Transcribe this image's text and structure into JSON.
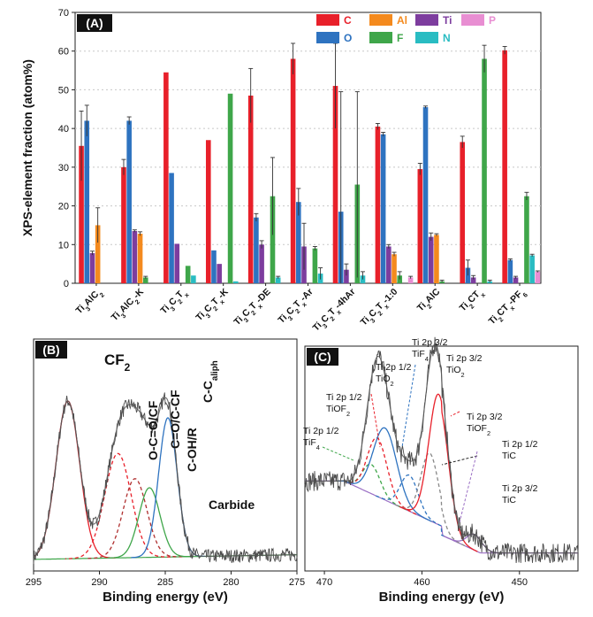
{
  "chart_data": [
    {
      "panel_label": "(A)",
      "type": "bar",
      "ylabel": "XPS-element fraction (atom%)",
      "ylim": [
        0,
        70
      ],
      "yticks": [
        "0",
        "10",
        "20",
        "30",
        "40",
        "50",
        "60",
        "70"
      ],
      "grid": "dotted horizontal",
      "legend_position": "top-right",
      "categories": [
        {
          "base": "Ti",
          "parts": [
            [
              "3",
              "s"
            ],
            [
              "AlC",
              ""
            ],
            [
              "2",
              "s"
            ]
          ]
        },
        {
          "base": "Ti",
          "parts": [
            [
              "3",
              "s"
            ],
            [
              "AlC",
              ""
            ],
            [
              "2",
              "s"
            ],
            [
              "-K",
              ""
            ]
          ]
        },
        {
          "base": "Ti",
          "parts": [
            [
              "3",
              "s"
            ],
            [
              "C",
              ""
            ],
            [
              "2",
              "s"
            ],
            [
              "T",
              ""
            ],
            [
              "x",
              "s"
            ]
          ]
        },
        {
          "base": "Ti",
          "parts": [
            [
              "3",
              "s"
            ],
            [
              "C",
              ""
            ],
            [
              "2",
              "s"
            ],
            [
              "T",
              ""
            ],
            [
              "x",
              "s"
            ],
            [
              "-K",
              ""
            ]
          ]
        },
        {
          "base": "Ti",
          "parts": [
            [
              "3",
              "s"
            ],
            [
              "C",
              ""
            ],
            [
              "2",
              "s"
            ],
            [
              "T",
              ""
            ],
            [
              "x",
              "s"
            ],
            [
              "-DE",
              ""
            ]
          ]
        },
        {
          "base": "Ti",
          "parts": [
            [
              "3",
              "s"
            ],
            [
              "C",
              ""
            ],
            [
              "2",
              "s"
            ],
            [
              "T",
              ""
            ],
            [
              "x",
              "s"
            ],
            [
              "-Ar",
              ""
            ]
          ]
        },
        {
          "base": "Ti",
          "parts": [
            [
              "3",
              "s"
            ],
            [
              "C",
              ""
            ],
            [
              "2",
              "s"
            ],
            [
              "T",
              ""
            ],
            [
              "x",
              "s"
            ],
            [
              "-4hAr",
              ""
            ]
          ]
        },
        {
          "base": "Ti",
          "parts": [
            [
              "3",
              "s"
            ],
            [
              "C",
              ""
            ],
            [
              "2",
              "s"
            ],
            [
              "T",
              ""
            ],
            [
              "x",
              "s"
            ],
            [
              "-1:0",
              ""
            ]
          ]
        },
        {
          "base": "Ti",
          "parts": [
            [
              "2",
              "s"
            ],
            [
              "AlC",
              ""
            ]
          ]
        },
        {
          "base": "Ti",
          "parts": [
            [
              "2",
              "s"
            ],
            [
              "CT",
              ""
            ],
            [
              "x",
              "s"
            ]
          ]
        },
        {
          "base": "Ti",
          "parts": [
            [
              "2",
              "s"
            ],
            [
              "CT",
              ""
            ],
            [
              "x",
              "s"
            ],
            [
              "-PF",
              ""
            ],
            [
              "6",
              "s"
            ]
          ]
        }
      ],
      "series": [
        {
          "name": "C",
          "color": "#e8202a",
          "values": [
            35.5,
            30,
            54.5,
            37,
            48.5,
            58,
            51,
            40.5,
            29.5,
            36.5,
            60.2
          ],
          "errors": [
            9,
            2,
            0,
            0,
            7,
            4,
            11,
            0.8,
            1.5,
            1.5,
            1
          ]
        },
        {
          "name": "O",
          "color": "#2e73c0",
          "values": [
            42,
            42,
            28.5,
            8.5,
            17,
            21,
            18.5,
            38.5,
            45.5,
            4,
            6
          ],
          "errors": [
            4,
            1,
            0,
            0,
            1,
            3.5,
            31,
            0.5,
            0.3,
            2,
            0.3
          ]
        },
        {
          "name": "Ti",
          "color": "#7d3d9e",
          "values": [
            7.8,
            13.5,
            10.2,
            5,
            10,
            9.5,
            3.5,
            9.5,
            12,
            1.5,
            1.5
          ],
          "errors": [
            0.5,
            0.3,
            0,
            0,
            1,
            6,
            1.5,
            0.5,
            1,
            0.5,
            0.3
          ]
        },
        {
          "name": "Al",
          "color": "#f48a1e",
          "values": [
            15,
            12.8,
            0,
            0,
            0,
            0,
            0,
            7.5,
            12.5,
            0,
            0
          ],
          "errors": [
            4.5,
            0.5,
            0,
            0,
            0,
            0,
            0,
            0.5,
            0.3,
            0,
            0
          ]
        },
        {
          "name": "F",
          "color": "#3fa64a",
          "values": [
            0,
            1.5,
            4.5,
            49,
            22.5,
            9,
            25.5,
            2,
            0.5,
            58,
            22.5
          ],
          "errors": [
            0,
            0.3,
            0,
            0,
            10,
            0.5,
            24,
            1,
            0.3,
            3.5,
            1
          ]
        },
        {
          "name": "N",
          "color": "#29bcc2",
          "values": [
            0,
            0,
            2,
            0.5,
            1.5,
            2.5,
            2,
            0,
            0,
            0.5,
            7.2
          ],
          "errors": [
            0,
            0,
            0,
            0,
            0.3,
            1.5,
            1,
            0,
            0,
            0.3,
            0.3
          ]
        },
        {
          "name": "P",
          "color": "#e88ed2",
          "values": [
            0,
            0,
            0,
            0,
            0,
            0,
            0,
            1.5,
            0,
            0,
            3
          ],
          "errors": [
            0,
            0,
            0,
            0,
            0,
            0,
            0,
            0.3,
            0,
            0,
            0.2
          ]
        }
      ]
    },
    {
      "panel_label": "(B)",
      "type": "line",
      "xlabel": "Binding energy (eV)",
      "xlim": [
        295,
        275
      ],
      "xticks": [
        295,
        290,
        285,
        280,
        275
      ],
      "peaks": [
        {
          "center": 292.4,
          "amp": 0.68,
          "width": 0.9,
          "color": "#e8202a",
          "dash": false
        },
        {
          "center": 288.6,
          "amp": 0.45,
          "width": 1.0,
          "color": "#e8202a",
          "dash": true
        },
        {
          "center": 287.3,
          "amp": 0.34,
          "width": 0.9,
          "color": "#b03030",
          "dash": true
        },
        {
          "center": 286.2,
          "amp": 0.3,
          "width": 0.8,
          "color": "#3fa64a",
          "dash": false
        },
        {
          "center": 284.8,
          "amp": 0.6,
          "width": 0.7,
          "color": "#2e73c0",
          "dash": false
        }
      ],
      "annotations": [
        {
          "text": "CF",
          "sub": "2"
        },
        {
          "text": "O-C=O/CF",
          "sub": ""
        },
        {
          "text": "C=O/C-CF",
          "sub": ""
        },
        {
          "text": "C-OH/R",
          "sub": ""
        },
        {
          "text": "C-C",
          "sub": "aliph"
        },
        {
          "text": "Carbide",
          "sub": ""
        }
      ]
    },
    {
      "panel_label": "(C)",
      "type": "line",
      "xlabel": "Binding energy (eV)",
      "xlim": [
        472,
        444
      ],
      "xticks": [
        470,
        460,
        450
      ],
      "peaks": [
        {
          "center": 465.2,
          "amp": 0.13,
          "width": 0.9,
          "color": "#3fa64a",
          "dash": true
        },
        {
          "center": 464.6,
          "amp": 0.26,
          "width": 1.0,
          "color": "#e8202a",
          "dash": true
        },
        {
          "center": 463.8,
          "amp": 0.32,
          "width": 1.2,
          "color": "#2e73c0",
          "dash": false
        },
        {
          "center": 461.3,
          "amp": 0.16,
          "width": 0.9,
          "color": "#2e73c0",
          "dash": true
        },
        {
          "center": 459.2,
          "amp": 0.3,
          "width": 0.9,
          "color": "#888888",
          "dash": true
        },
        {
          "center": 458.3,
          "amp": 0.58,
          "width": 1.0,
          "color": "#e8202a",
          "dash": false
        },
        {
          "center": 454.6,
          "amp": 0.07,
          "width": 0.8,
          "color": "#9a6ec4",
          "dash": false
        }
      ],
      "annotations": [
        {
          "lines": [
            {
              "text": "Ti 2p 3/2",
              "sub": ""
            },
            {
              "text": "TiF",
              "sub": "4"
            }
          ]
        },
        {
          "lines": [
            {
              "text": "Ti 2p 1/2",
              "sub": ""
            },
            {
              "text": "TiO",
              "sub": "2"
            }
          ]
        },
        {
          "lines": [
            {
              "text": "Ti 2p 3/2",
              "sub": ""
            },
            {
              "text": "TiO",
              "sub": "2"
            }
          ]
        },
        {
          "lines": [
            {
              "text": "Ti 2p 1/2",
              "sub": ""
            },
            {
              "text": "TiOF",
              "sub": "2"
            }
          ]
        },
        {
          "lines": [
            {
              "text": "Ti 2p 3/2",
              "sub": ""
            },
            {
              "text": "TiOF",
              "sub": "2"
            }
          ]
        },
        {
          "lines": [
            {
              "text": "Ti 2p 1/2",
              "sub": ""
            },
            {
              "text": "TiF",
              "sub": "4"
            }
          ]
        },
        {
          "lines": [
            {
              "text": "Ti 2p 1/2",
              "sub": ""
            },
            {
              "text": "TiC",
              "sub": ""
            }
          ]
        },
        {
          "lines": [
            {
              "text": "Ti 2p 3/2",
              "sub": ""
            },
            {
              "text": "TiC",
              "sub": ""
            }
          ]
        }
      ]
    }
  ]
}
